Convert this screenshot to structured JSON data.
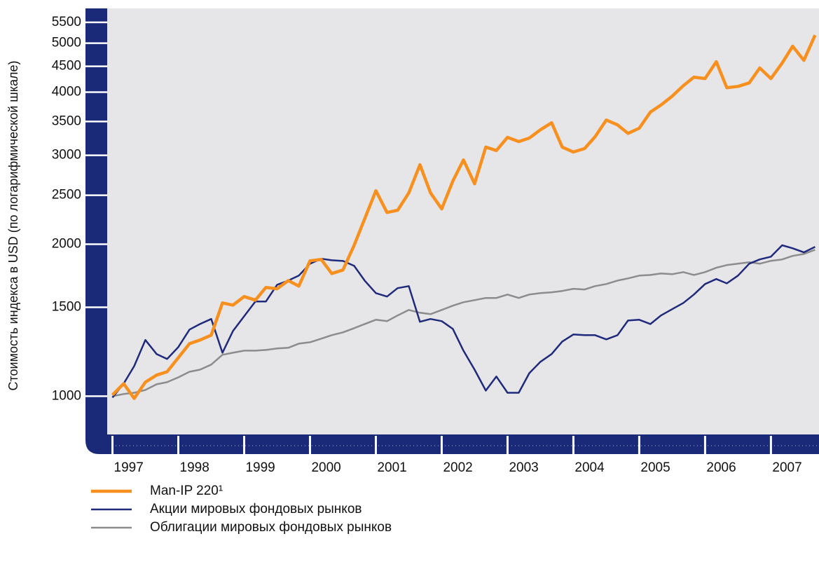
{
  "chart_data": {
    "type": "line",
    "y_label": "Стоимость индекса в USD (по логарифмической шкале)",
    "y_scale": "log",
    "grid": false,
    "legend": "bottom-left",
    "xlim": [
      1996.92,
      2007.73
    ],
    "xticks": [
      1997,
      1998,
      1999,
      2000,
      2001,
      2002,
      2003,
      2004,
      2005,
      2006,
      2007
    ],
    "ylim": [
      840,
      5860
    ],
    "yticks": [
      1000,
      1500,
      2000,
      2500,
      3000,
      3500,
      4000,
      4500,
      5000,
      5500
    ],
    "x": [
      1997,
      1997.17,
      1997.33,
      1997.5,
      1997.67,
      1997.83,
      1998,
      1998.17,
      1998.33,
      1998.5,
      1998.67,
      1998.83,
      1999,
      1999.17,
      1999.33,
      1999.5,
      1999.67,
      1999.83,
      2000,
      2000.17,
      2000.33,
      2000.5,
      2000.67,
      2000.83,
      2001,
      2001.17,
      2001.33,
      2001.5,
      2001.67,
      2001.83,
      2002,
      2002.17,
      2002.33,
      2002.5,
      2002.67,
      2002.83,
      2003,
      2003.17,
      2003.33,
      2003.5,
      2003.67,
      2003.83,
      2004,
      2004.17,
      2004.33,
      2004.5,
      2004.67,
      2004.83,
      2005,
      2005.17,
      2005.33,
      2005.5,
      2005.67,
      2005.83,
      2006,
      2006.17,
      2006.33,
      2006.5,
      2006.67,
      2006.83,
      2007,
      2007.17,
      2007.33,
      2007.5,
      2007.67
    ],
    "series": [
      {
        "name": "Man-IP 220¹",
        "color": "#f7901e",
        "width": 4.5,
        "values": [
          1006,
          1059,
          990,
          1066,
          1101,
          1118,
          1192,
          1271,
          1292,
          1321,
          1530,
          1515,
          1575,
          1550,
          1642,
          1632,
          1694,
          1652,
          1854,
          1866,
          1750,
          1778,
          1990,
          2245,
          2552,
          2311,
          2334,
          2527,
          2873,
          2527,
          2349,
          2668,
          2937,
          2635,
          3114,
          3066,
          3255,
          3193,
          3245,
          3370,
          3479,
          3114,
          3045,
          3093,
          3265,
          3523,
          3446,
          3315,
          3393,
          3653,
          3772,
          3927,
          4121,
          4283,
          4256,
          4595,
          4081,
          4107,
          4172,
          4467,
          4256,
          4567,
          4931,
          4624,
          5187
        ]
      },
      {
        "name": "Акции мировых фондовых рынков",
        "color": "#1f2a7c",
        "width": 2.5,
        "values": [
          994,
          1059,
          1147,
          1292,
          1212,
          1185,
          1251,
          1355,
          1390,
          1422,
          1219,
          1346,
          1440,
          1540,
          1540,
          1662,
          1694,
          1733,
          1830,
          1872,
          1859,
          1853,
          1812,
          1694,
          1600,
          1575,
          1637,
          1652,
          1404,
          1422,
          1408,
          1359,
          1231,
          1129,
          1026,
          1094,
          1016,
          1016,
          1111,
          1170,
          1212,
          1283,
          1325,
          1321,
          1321,
          1296,
          1321,
          1412,
          1417,
          1390,
          1445,
          1487,
          1530,
          1590,
          1668,
          1706,
          1673,
          1733,
          1830,
          1866,
          1889,
          1990,
          1963,
          1927,
          1976
        ]
      },
      {
        "name": "Облигации мировых фондовых рынков",
        "color": "#8c8c8c",
        "width": 2.5,
        "values": [
          1000,
          1010,
          1016,
          1029,
          1056,
          1066,
          1090,
          1118,
          1129,
          1155,
          1208,
          1219,
          1231,
          1231,
          1235,
          1243,
          1247,
          1271,
          1279,
          1300,
          1321,
          1338,
          1364,
          1390,
          1417,
          1408,
          1445,
          1482,
          1463,
          1454,
          1482,
          1511,
          1535,
          1550,
          1565,
          1565,
          1590,
          1565,
          1590,
          1600,
          1606,
          1616,
          1632,
          1627,
          1652,
          1668,
          1694,
          1711,
          1733,
          1738,
          1750,
          1744,
          1761,
          1738,
          1761,
          1796,
          1818,
          1830,
          1842,
          1830,
          1854,
          1866,
          1896,
          1913,
          1950
        ]
      }
    ]
  }
}
